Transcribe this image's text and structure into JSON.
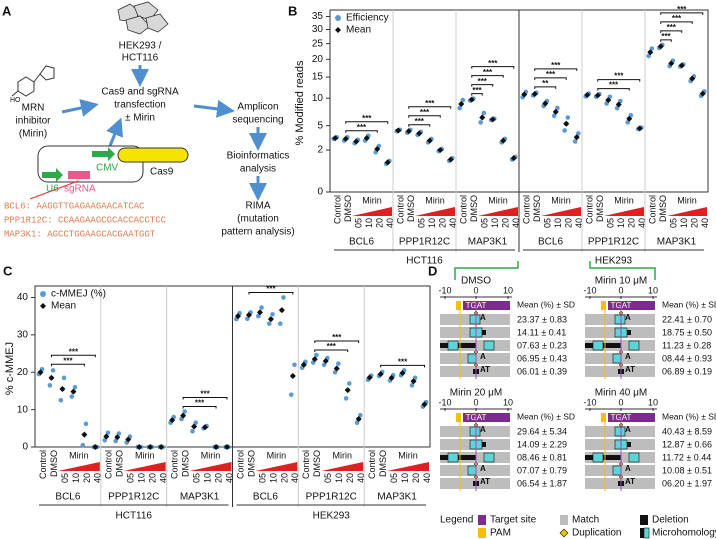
{
  "panel_a": {
    "label": "A",
    "cells": [
      "HEK293 /",
      "HCT116"
    ],
    "inhibitor": [
      "MRN",
      "inhibitor",
      "(Mirin)"
    ],
    "transfection": [
      "Cas9 and sgRNA",
      "transfection",
      "± Mirin"
    ],
    "sequencing": [
      "Amplicon",
      "sequencing"
    ],
    "analysis": [
      "Bioinformatics",
      "analysis"
    ],
    "rima": [
      "RIMA",
      "(mutation",
      "pattern analysis)"
    ],
    "plasmid": {
      "u6": "U6",
      "sgrna": "sgRNA",
      "cmv": "CMV",
      "cas9": "Cas9"
    },
    "sequences": [
      "BCL6: AAGGTTGAGAAGAACATCAC",
      "PPP1R12C: CCAAGAAGCGCACCACCTCC",
      "MAP3K1: AGCCTGGAAGCACGAATGGT"
    ]
  },
  "chart_data": [
    {
      "type": "dot",
      "label": "B",
      "ylabel": "% Modified reads",
      "yscale": "sqrt",
      "ylim": [
        0,
        36
      ],
      "yticks": [
        0,
        2,
        5,
        10,
        15,
        20,
        25,
        30,
        35
      ],
      "legend": "upper left",
      "controls": [
        "Control",
        "DMSO"
      ],
      "treatment": {
        "name": "Mirin",
        "doses": [
          "05",
          "10",
          "20",
          "40"
        ]
      },
      "cell_lines": [
        {
          "name": "HCT116",
          "genes": [
            {
              "name": "BCL6",
              "significance": [
                {
                  "label": "***",
                  "pair": [
                    1,
                    4
                  ]
                },
                {
                  "label": "***",
                  "pair": [
                    1,
                    5
                  ]
                }
              ]
            },
            {
              "name": "PPP1R12C",
              "significance": [
                {
                  "label": "***",
                  "pair": [
                    1,
                    3
                  ]
                },
                {
                  "label": "***",
                  "pair": [
                    1,
                    4
                  ]
                },
                {
                  "label": "***",
                  "pair": [
                    1,
                    5
                  ]
                }
              ]
            },
            {
              "name": "MAP3K1",
              "significance": [
                {
                  "label": "***",
                  "pair": [
                    1,
                    2
                  ]
                },
                {
                  "label": "***",
                  "pair": [
                    1,
                    3
                  ]
                },
                {
                  "label": "***",
                  "pair": [
                    1,
                    4
                  ]
                },
                {
                  "label": "***",
                  "pair": [
                    1,
                    5
                  ]
                }
              ]
            }
          ]
        },
        {
          "name": "HEK293",
          "genes": [
            {
              "name": "BCL6",
              "significance": [
                {
                  "label": "**",
                  "pair": [
                    1,
                    3
                  ]
                },
                {
                  "label": "***",
                  "pair": [
                    1,
                    4
                  ]
                },
                {
                  "label": "***",
                  "pair": [
                    1,
                    5
                  ]
                }
              ]
            },
            {
              "name": "PPP1R12C",
              "significance": [
                {
                  "label": "***",
                  "pair": [
                    1,
                    4
                  ]
                },
                {
                  "label": "***",
                  "pair": [
                    1,
                    5
                  ]
                }
              ]
            },
            {
              "name": "MAP3K1",
              "significance": [
                {
                  "label": "***",
                  "pair": [
                    1,
                    2
                  ]
                },
                {
                  "label": "***",
                  "pair": [
                    1,
                    3
                  ]
                },
                {
                  "label": "***",
                  "pair": [
                    1,
                    4
                  ]
                },
                {
                  "label": "***",
                  "pair": [
                    1,
                    5
                  ]
                }
              ]
            }
          ]
        }
      ],
      "series": [
        {
          "name": "Efficiency",
          "color": "#5b9bd5",
          "values": [
            [
              3.2,
              3.3,
              3.4
            ],
            [
              3.0,
              3.2,
              3.4
            ],
            [
              2.7,
              2.9,
              3.1
            ],
            [
              3.0,
              3.3,
              3.6
            ],
            [
              1.8,
              2.1,
              2.4
            ],
            [
              0.9,
              1.0,
              1.1
            ],
            [
              4.2,
              4.3,
              4.4
            ],
            [
              4.0,
              4.2,
              4.4
            ],
            [
              3.7,
              3.9,
              4.1
            ],
            [
              2.8,
              3.0,
              3.2
            ],
            [
              1.9,
              2.0,
              2.1
            ],
            [
              1.1,
              1.2,
              1.3
            ],
            [
              8.0,
              8.8,
              9.6
            ],
            [
              9.5,
              9.7,
              9.9
            ],
            [
              5.5,
              6.3,
              7.1
            ],
            [
              5.9,
              6.0,
              6.1
            ],
            [
              2.8,
              3.0,
              3.2
            ],
            [
              1.2,
              1.3,
              1.4
            ],
            [
              10.2,
              10.8,
              11.4
            ],
            [
              10.6,
              10.9,
              11.2
            ],
            [
              8.4,
              8.9,
              9.4
            ],
            [
              6.6,
              7.3,
              8.0
            ],
            [
              4.3,
              5.3,
              6.3
            ],
            [
              2.9,
              3.4,
              3.9
            ],
            [
              10.4,
              10.7,
              11.0
            ],
            [
              10.3,
              10.6,
              10.9
            ],
            [
              8.9,
              9.6,
              10.3
            ],
            [
              8.0,
              8.7,
              9.4
            ],
            [
              5.5,
              6.1,
              6.7
            ],
            [
              4.5,
              4.6,
              4.7
            ],
            [
              21.0,
              22.2,
              23.4
            ],
            [
              23.6,
              24.1,
              24.6
            ],
            [
              18.0,
              18.8,
              19.6
            ],
            [
              17.9,
              18.2,
              18.5
            ],
            [
              14.0,
              14.6,
              15.2
            ],
            [
              10.5,
              11.0,
              11.5
            ]
          ]
        },
        {
          "name": "Mean",
          "color": "#111111",
          "values": [
            3.3,
            3.2,
            2.9,
            3.3,
            2.1,
            1.0,
            4.3,
            4.2,
            3.9,
            3.0,
            2.0,
            1.2,
            8.8,
            9.7,
            6.3,
            6.0,
            3.0,
            1.3,
            10.8,
            10.9,
            8.9,
            7.3,
            5.3,
            3.4,
            10.7,
            10.6,
            9.6,
            8.7,
            6.1,
            4.6,
            22.2,
            24.1,
            18.8,
            18.2,
            14.6,
            11.0
          ]
        }
      ]
    },
    {
      "type": "dot",
      "label": "C",
      "ylabel": "% c-MMEJ",
      "ylim": [
        0,
        42
      ],
      "yticks": [
        0,
        10,
        20,
        30,
        40
      ],
      "legend": "upper left",
      "controls": [
        "Control",
        "DMSO"
      ],
      "treatment": {
        "name": "Mirin",
        "doses": [
          "05",
          "10",
          "20",
          "40"
        ]
      },
      "cell_lines": [
        {
          "name": "HCT116",
          "genes": [
            {
              "name": "BCL6",
              "significance": [
                {
                  "label": "***",
                  "pair": [
                    1,
                    4
                  ]
                },
                {
                  "label": "***",
                  "pair": [
                    1,
                    5
                  ]
                }
              ]
            },
            {
              "name": "PPP1R12C",
              "significance": []
            },
            {
              "name": "MAP3K1",
              "significance": [
                {
                  "label": "***",
                  "pair": [
                    1,
                    4
                  ]
                },
                {
                  "label": "***",
                  "pair": [
                    1,
                    5
                  ]
                }
              ]
            }
          ]
        },
        {
          "name": "HEK293",
          "genes": [
            {
              "name": "BCL6",
              "significance": [
                {
                  "label": "***",
                  "pair": [
                    1,
                    5
                  ]
                }
              ]
            },
            {
              "name": "PPP1R12C",
              "significance": [
                {
                  "label": "***",
                  "pair": [
                    1,
                    4
                  ]
                },
                {
                  "label": "***",
                  "pair": [
                    1,
                    5
                  ]
                }
              ]
            },
            {
              "name": "MAP3K1",
              "significance": [
                {
                  "label": "***",
                  "pair": [
                    1,
                    5
                  ]
                }
              ]
            }
          ]
        }
      ],
      "series": [
        {
          "name": "c-MMEJ (%)",
          "color": "#5b9bd5",
          "values": [
            [
              19.5,
              20.0,
              20.8
            ],
            [
              16.5,
              18.5,
              20.5
            ],
            [
              12.5,
              15.5,
              18.5
            ],
            [
              13.5,
              14.8,
              16.0
            ],
            [
              0.5,
              3.3,
              6.2
            ],
            [
              0,
              0,
              0
            ],
            [
              1.8,
              2.8,
              3.8
            ],
            [
              1.6,
              2.6,
              3.6
            ],
            [
              1.2,
              2.0,
              2.8
            ],
            [
              0,
              0,
              0
            ],
            [
              0,
              0,
              0
            ],
            [
              0,
              0,
              0
            ],
            [
              6.5,
              7.2,
              8.0
            ],
            [
              7.5,
              8.4,
              9.5
            ],
            [
              4.2,
              5.5,
              6.5
            ],
            [
              5.0,
              5.3,
              5.6
            ],
            [
              0,
              0,
              0
            ],
            [
              0,
              0,
              0
            ],
            [
              34.2,
              35.0,
              35.8
            ],
            [
              34.3,
              35.3,
              36.0
            ],
            [
              35.0,
              36.0,
              37.3
            ],
            [
              33.0,
              34.2,
              35.5
            ],
            [
              33.0,
              36.6,
              40.0
            ],
            [
              14.0,
              19.0,
              22.0
            ],
            [
              21.2,
              22.0,
              22.8
            ],
            [
              22.6,
              23.5,
              24.6
            ],
            [
              22.0,
              23.0,
              23.8
            ],
            [
              20.0,
              21.0,
              22.3
            ],
            [
              13.0,
              15.2,
              17.0
            ],
            [
              6.5,
              7.5,
              8.5
            ],
            [
              18.0,
              18.6,
              19.1
            ],
            [
              19.0,
              19.5,
              20.1
            ],
            [
              17.8,
              18.5,
              19.2
            ],
            [
              19.2,
              19.8,
              20.5
            ],
            [
              16.5,
              17.6,
              18.5
            ],
            [
              10.8,
              11.4,
              12.0
            ]
          ]
        },
        {
          "name": "Mean",
          "color": "#111111",
          "values": [
            20.0,
            18.5,
            15.5,
            14.8,
            3.3,
            0,
            2.8,
            2.6,
            2.0,
            0,
            0,
            0,
            7.2,
            8.4,
            5.5,
            5.3,
            0,
            0,
            35.0,
            35.3,
            36.0,
            34.2,
            36.6,
            19.0,
            22.0,
            23.5,
            23.0,
            21.0,
            15.2,
            7.5,
            18.6,
            19.5,
            18.5,
            19.8,
            17.6,
            11.4
          ]
        }
      ]
    }
  ],
  "panel_d": {
    "label": "D",
    "axis_ticks": [
      "-10",
      "0",
      "10"
    ],
    "target_text": "TGAT",
    "mean_header": "Mean (%) ± SD",
    "conditions": [
      {
        "title": "DMSO",
        "rows": [
          {
            "value": "23.37 ± 0.83",
            "insert": "A"
          },
          {
            "value": "14.11 ± 0.41"
          },
          {
            "value": "07.63 ± 0.23"
          },
          {
            "value": "06.95 ± 0.43",
            "insert": "A"
          },
          {
            "value": "06.01 ± 0.39",
            "insert": "AT"
          }
        ]
      },
      {
        "title": "Mirin 10 μM",
        "rows": [
          {
            "value": "22.41 ± 0.70",
            "insert": "A"
          },
          {
            "value": "18.75 ± 0.50"
          },
          {
            "value": "11.23 ± 0.28"
          },
          {
            "value": "08.44 ± 0.93",
            "insert": "A"
          },
          {
            "value": "06.89 ± 0.19",
            "insert": "AT"
          }
        ]
      },
      {
        "title": "Mirin 20 μM",
        "rows": [
          {
            "value": "29.64 ± 5.34",
            "insert": "A"
          },
          {
            "value": "14.09 ± 2.29"
          },
          {
            "value": "08.46 ± 0.81"
          },
          {
            "value": "07.07 ± 0.79",
            "insert": "A"
          },
          {
            "value": "06.54 ± 1.87",
            "insert": "AT"
          }
        ]
      },
      {
        "title": "Mirin 40 μM",
        "rows": [
          {
            "value": "40.43 ± 8.59",
            "insert": "A"
          },
          {
            "value": "12.87 ± 0.66"
          },
          {
            "value": "11.72 ± 0.44"
          },
          {
            "value": "10.08 ± 0.51",
            "insert": "A"
          },
          {
            "value": "06.20 ± 1.97",
            "insert": "AT"
          }
        ]
      }
    ],
    "legend": {
      "title": "Legend",
      "items": [
        "Target site",
        "Match",
        "Deletion",
        "PAM",
        "Duplication",
        "Microhomology"
      ]
    }
  }
}
